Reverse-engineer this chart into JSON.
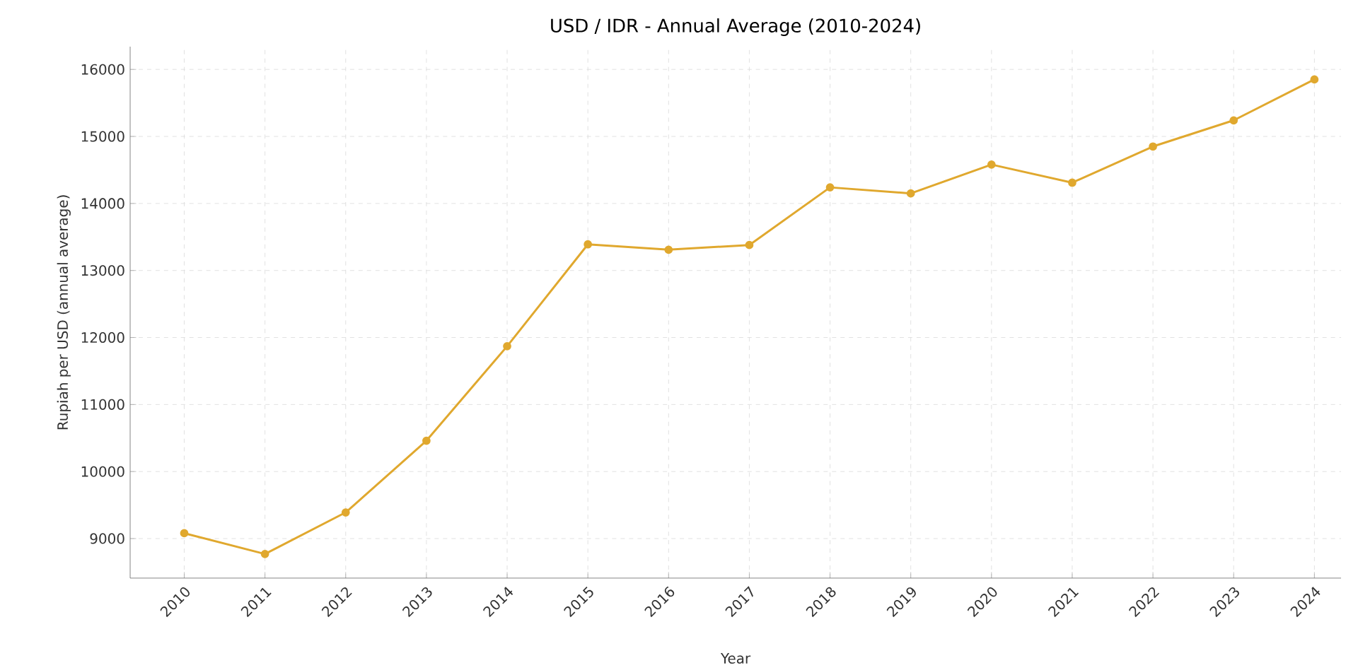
{
  "chart_data": {
    "type": "line",
    "title": "USD / IDR - Annual Average (2010-2024)",
    "xlabel": "Year",
    "ylabel": "Rupiah per USD (annual average)",
    "x": [
      2010,
      2011,
      2012,
      2013,
      2014,
      2015,
      2016,
      2017,
      2018,
      2019,
      2020,
      2021,
      2022,
      2023,
      2024
    ],
    "values": [
      9080,
      8770,
      9390,
      10460,
      11870,
      13390,
      13310,
      13380,
      14240,
      14150,
      14580,
      14310,
      14850,
      15240,
      15850
    ],
    "color": "#e0a82e",
    "marker": "circle",
    "line_style": "solid",
    "grid": true,
    "xlim": [
      2009.33,
      2024.33
    ],
    "xticks": [
      2010,
      2011,
      2012,
      2013,
      2014,
      2015,
      2016,
      2017,
      2018,
      2019,
      2020,
      2021,
      2022,
      2023,
      2024
    ],
    "ylim": [
      8410,
      16340
    ],
    "yticks": [
      9000,
      10000,
      11000,
      12000,
      13000,
      14000,
      15000,
      16000
    ]
  }
}
